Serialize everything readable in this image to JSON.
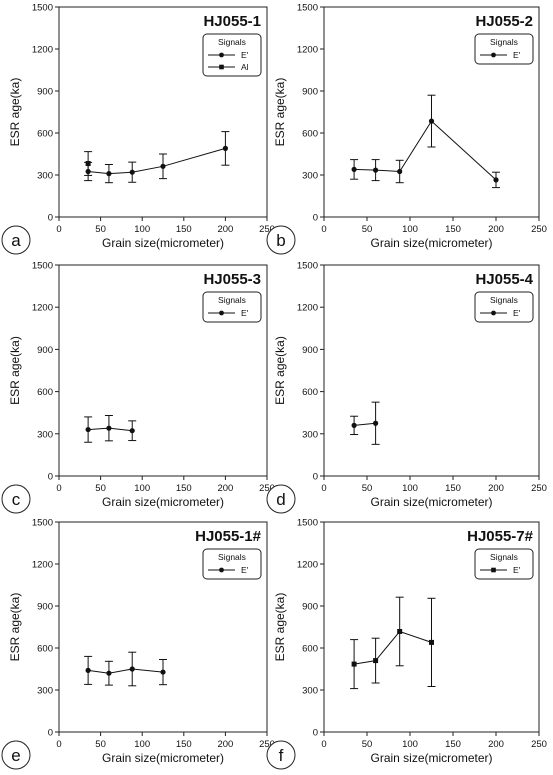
{
  "chart_data": [
    {
      "type": "scatter",
      "panel_letter": "a",
      "title": "HJ055-1",
      "xlabel": "Grain size(micrometer)",
      "ylabel": "ESR age(ka)",
      "xlim": [
        0,
        250
      ],
      "ylim": [
        0,
        1500
      ],
      "xticks": [
        0,
        50,
        100,
        150,
        200,
        250
      ],
      "yticks": [
        0,
        300,
        600,
        900,
        1200,
        1500
      ],
      "legend": {
        "title": "Signals",
        "placement": "top-right",
        "entries": [
          "E'",
          "Al"
        ]
      },
      "series": [
        {
          "name": "E'",
          "marker": "circle",
          "line": true,
          "x": [
            35,
            60,
            88,
            125,
            200
          ],
          "y": [
            325,
            310,
            320,
            362,
            490
          ],
          "err": [
            65,
            65,
            72,
            88,
            120
          ]
        },
        {
          "name": "Al",
          "marker": "square",
          "line": false,
          "x": [
            35
          ],
          "y": [
            382
          ],
          "err": [
            85
          ]
        }
      ]
    },
    {
      "type": "scatter",
      "panel_letter": "b",
      "title": "HJ055-2",
      "xlabel": "Grain size(micrometer)",
      "ylabel": "ESR age(ka)",
      "xlim": [
        0,
        250
      ],
      "ylim": [
        0,
        1500
      ],
      "xticks": [
        0,
        50,
        100,
        150,
        200,
        250
      ],
      "yticks": [
        0,
        300,
        600,
        900,
        1200,
        1500
      ],
      "legend": {
        "title": "Signals",
        "placement": "top-right",
        "entries": [
          "E'"
        ]
      },
      "series": [
        {
          "name": "E'",
          "marker": "circle",
          "line": true,
          "x": [
            35,
            60,
            88,
            125,
            200
          ],
          "y": [
            340,
            335,
            325,
            685,
            265
          ],
          "err": [
            70,
            75,
            80,
            185,
            55
          ]
        }
      ]
    },
    {
      "type": "scatter",
      "panel_letter": "c",
      "title": "HJ055-3",
      "xlabel": "Grain size(micrometer)",
      "ylabel": "ESR age(ka)",
      "xlim": [
        0,
        250
      ],
      "ylim": [
        0,
        1500
      ],
      "xticks": [
        0,
        50,
        100,
        150,
        200,
        250
      ],
      "yticks": [
        0,
        300,
        600,
        900,
        1200,
        1500
      ],
      "legend": {
        "title": "Signals",
        "placement": "top-right",
        "entries": [
          "E'"
        ]
      },
      "series": [
        {
          "name": "E'",
          "marker": "circle",
          "line": true,
          "x": [
            35,
            60,
            88
          ],
          "y": [
            330,
            340,
            322
          ],
          "err": [
            90,
            90,
            70
          ]
        }
      ]
    },
    {
      "type": "scatter",
      "panel_letter": "d",
      "title": "HJ055-4",
      "xlabel": "Grain size(micrometer)",
      "ylabel": "ESR age(ka)",
      "xlim": [
        0,
        250
      ],
      "ylim": [
        0,
        1500
      ],
      "xticks": [
        0,
        50,
        100,
        150,
        200,
        250
      ],
      "yticks": [
        0,
        300,
        600,
        900,
        1200,
        1500
      ],
      "legend": {
        "title": "Signals",
        "placement": "top-right",
        "entries": [
          "E'"
        ]
      },
      "series": [
        {
          "name": "E'",
          "marker": "circle",
          "line": true,
          "x": [
            35,
            60
          ],
          "y": [
            360,
            375
          ],
          "err": [
            65,
            150
          ]
        }
      ]
    },
    {
      "type": "scatter",
      "panel_letter": "e",
      "title": "HJ055-1#",
      "xlabel": "Grain size(micrometer)",
      "ylabel": "ESR age(ka)",
      "xlim": [
        0,
        250
      ],
      "ylim": [
        0,
        1500
      ],
      "xticks": [
        0,
        50,
        100,
        150,
        200,
        250
      ],
      "yticks": [
        0,
        300,
        600,
        900,
        1200,
        1500
      ],
      "legend": {
        "title": "Signals",
        "placement": "top-right",
        "entries": [
          "E'"
        ]
      },
      "series": [
        {
          "name": "E'",
          "marker": "circle",
          "line": true,
          "x": [
            35,
            60,
            88,
            125
          ],
          "y": [
            440,
            420,
            450,
            428
          ],
          "err": [
            100,
            85,
            120,
            90
          ]
        }
      ]
    },
    {
      "type": "scatter",
      "panel_letter": "f",
      "title": "HJ055-7#",
      "xlabel": "Grain size(micrometer)",
      "ylabel": "ESR age(ka)",
      "xlim": [
        0,
        250
      ],
      "ylim": [
        0,
        1500
      ],
      "xticks": [
        0,
        50,
        100,
        150,
        200,
        250
      ],
      "yticks": [
        0,
        300,
        600,
        900,
        1200,
        1500
      ],
      "legend": {
        "title": "Signals",
        "placement": "top-right",
        "entries": [
          "E'"
        ]
      },
      "series": [
        {
          "name": "E'",
          "marker": "square",
          "line": true,
          "x": [
            35,
            60,
            88,
            125
          ],
          "y": [
            485,
            510,
            718,
            640
          ],
          "err": [
            175,
            160,
            245,
            315
          ]
        }
      ]
    }
  ]
}
